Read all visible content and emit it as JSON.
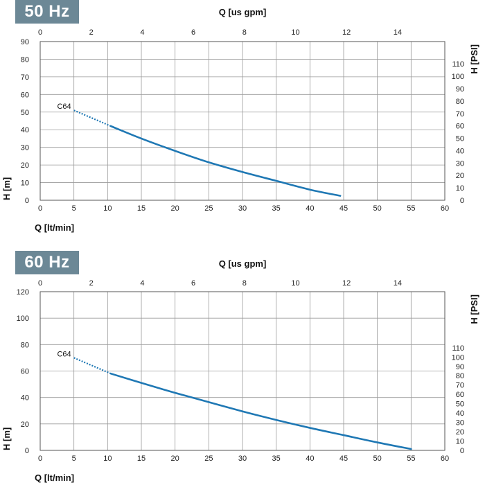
{
  "charts": [
    {
      "badge": "50 Hz",
      "chart_data": {
        "type": "line",
        "title": "",
        "xlabel": "Q [lt/min]",
        "ylabel": "H [m]",
        "x2label": "Q [us gpm]",
        "y2label": "H [PSI]",
        "xlim": [
          0,
          60
        ],
        "ylim": [
          0,
          90
        ],
        "x2lim": [
          0,
          15.85
        ],
        "y2lim": [
          0,
          128
        ],
        "xticks": [
          0,
          5,
          10,
          15,
          20,
          25,
          30,
          35,
          40,
          45,
          50,
          55,
          60
        ],
        "yticks": [
          0,
          10,
          20,
          30,
          40,
          50,
          60,
          70,
          80,
          90
        ],
        "x2ticks": [
          0,
          2,
          4,
          6,
          8,
          10,
          12,
          14
        ],
        "y2ticks": [
          0,
          10,
          20,
          30,
          40,
          50,
          60,
          70,
          80,
          90,
          100,
          110
        ],
        "grid": true,
        "series": [
          {
            "name": "C64",
            "color": "#1f78b4",
            "dashed_until_x": 10.5,
            "x": [
              5,
              10.5,
              15,
              20,
              25,
              30,
              35,
              40,
              44.5
            ],
            "y": [
              51,
              42,
              35,
              28,
              21.5,
              16,
              11,
              6,
              2.5
            ]
          }
        ]
      }
    },
    {
      "badge": "60 Hz",
      "chart_data": {
        "type": "line",
        "title": "",
        "xlabel": "Q [lt/min]",
        "ylabel": "H [m]",
        "x2label": "Q [us gpm]",
        "y2label": "H [PSI]",
        "xlim": [
          0,
          60
        ],
        "ylim": [
          0,
          120
        ],
        "x2lim": [
          0,
          15.85
        ],
        "y2lim": [
          0,
          170
        ],
        "xticks": [
          0,
          5,
          10,
          15,
          20,
          25,
          30,
          35,
          40,
          45,
          50,
          55,
          60
        ],
        "yticks": [
          0,
          20,
          40,
          60,
          80,
          100,
          120
        ],
        "x2ticks": [
          0,
          2,
          4,
          6,
          8,
          10,
          12,
          14
        ],
        "y2ticks": [
          0,
          10,
          20,
          30,
          40,
          50,
          60,
          70,
          80,
          90,
          100,
          110
        ],
        "grid": true,
        "series": [
          {
            "name": "C64",
            "color": "#1f78b4",
            "dashed_until_x": 10.5,
            "x": [
              5,
              10.5,
              15,
              20,
              25,
              30,
              35,
              40,
              45,
              50,
              55
            ],
            "y": [
              70,
              58,
              51,
              43.5,
              36.5,
              29.5,
              23,
              17,
              11.5,
              6,
              1
            ]
          }
        ]
      }
    }
  ]
}
